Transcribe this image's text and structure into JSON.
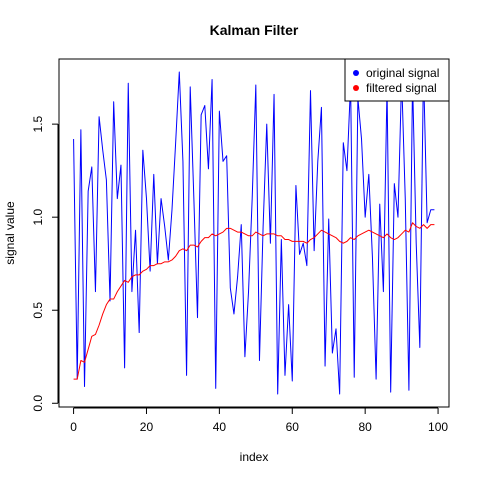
{
  "chart_data": {
    "type": "line",
    "title": "Kalman Filter",
    "xlabel": "index",
    "ylabel": "signal value",
    "xlim": [
      -4,
      103
    ],
    "ylim": [
      -0.02,
      1.85
    ],
    "xticks": [
      0,
      20,
      40,
      60,
      80,
      100
    ],
    "yticks": [
      0.0,
      0.5,
      1.0,
      1.5
    ],
    "ytick_labels": [
      "0.0",
      "0.5",
      "1.0",
      "1.5"
    ],
    "grid": false,
    "legend": {
      "position": "top-right"
    },
    "x": [
      0,
      1,
      2,
      3,
      4,
      5,
      6,
      7,
      8,
      9,
      10,
      11,
      12,
      13,
      14,
      15,
      16,
      17,
      18,
      19,
      20,
      21,
      22,
      23,
      24,
      25,
      26,
      27,
      28,
      29,
      30,
      31,
      32,
      33,
      34,
      35,
      36,
      37,
      38,
      39,
      40,
      41,
      42,
      43,
      44,
      45,
      46,
      47,
      48,
      49,
      50,
      51,
      52,
      53,
      54,
      55,
      56,
      57,
      58,
      59,
      60,
      61,
      62,
      63,
      64,
      65,
      66,
      67,
      68,
      69,
      70,
      71,
      72,
      73,
      74,
      75,
      76,
      77,
      78,
      79,
      80,
      81,
      82,
      83,
      84,
      85,
      86,
      87,
      88,
      89,
      90,
      91,
      92,
      93,
      94,
      95,
      96,
      97,
      98,
      99
    ],
    "series": [
      {
        "name": "original signal",
        "color": "#0000ff",
        "values": [
          1.42,
          0.13,
          1.47,
          0.09,
          1.14,
          1.27,
          0.6,
          1.54,
          1.36,
          1.2,
          0.55,
          1.62,
          1.1,
          1.28,
          0.19,
          1.72,
          0.6,
          0.93,
          0.38,
          1.36,
          1.1,
          0.71,
          1.23,
          0.75,
          1.1,
          0.95,
          0.77,
          1.04,
          1.4,
          1.78,
          1.3,
          0.15,
          1.7,
          1.1,
          0.46,
          1.55,
          1.6,
          1.26,
          1.74,
          0.08,
          1.57,
          1.3,
          1.33,
          0.62,
          0.48,
          0.68,
          0.96,
          0.25,
          0.6,
          1.1,
          1.71,
          0.23,
          0.95,
          1.5,
          0.86,
          1.66,
          0.05,
          0.88,
          0.15,
          0.53,
          0.12,
          1.17,
          0.8,
          0.86,
          0.74,
          1.68,
          0.82,
          1.3,
          1.59,
          0.2,
          0.99,
          0.27,
          0.4,
          0.05,
          1.4,
          1.25,
          1.72,
          0.14,
          1.64,
          1.42,
          1.0,
          1.23,
          0.78,
          0.13,
          1.07,
          0.6,
          1.7,
          0.06,
          1.18,
          1.0,
          1.75,
          1.1,
          0.07,
          1.74,
          0.86,
          0.3,
          1.8,
          0.97,
          1.04,
          1.04
        ]
      },
      {
        "name": "filtered signal",
        "color": "#ff0000",
        "values": [
          0.13,
          0.13,
          0.23,
          0.22,
          0.29,
          0.36,
          0.37,
          0.42,
          0.48,
          0.53,
          0.56,
          0.56,
          0.6,
          0.63,
          0.66,
          0.65,
          0.68,
          0.69,
          0.69,
          0.71,
          0.72,
          0.74,
          0.74,
          0.75,
          0.75,
          0.76,
          0.76,
          0.77,
          0.79,
          0.82,
          0.83,
          0.82,
          0.85,
          0.85,
          0.84,
          0.87,
          0.89,
          0.89,
          0.91,
          0.9,
          0.91,
          0.92,
          0.94,
          0.94,
          0.93,
          0.92,
          0.92,
          0.91,
          0.9,
          0.9,
          0.92,
          0.91,
          0.9,
          0.91,
          0.91,
          0.91,
          0.9,
          0.9,
          0.88,
          0.88,
          0.87,
          0.87,
          0.87,
          0.87,
          0.86,
          0.88,
          0.89,
          0.91,
          0.93,
          0.92,
          0.91,
          0.9,
          0.89,
          0.87,
          0.86,
          0.87,
          0.89,
          0.88,
          0.9,
          0.91,
          0.92,
          0.93,
          0.92,
          0.91,
          0.9,
          0.89,
          0.91,
          0.89,
          0.88,
          0.89,
          0.91,
          0.93,
          0.92,
          0.97,
          0.95,
          0.94,
          0.96,
          0.94,
          0.96,
          0.96
        ]
      }
    ]
  }
}
